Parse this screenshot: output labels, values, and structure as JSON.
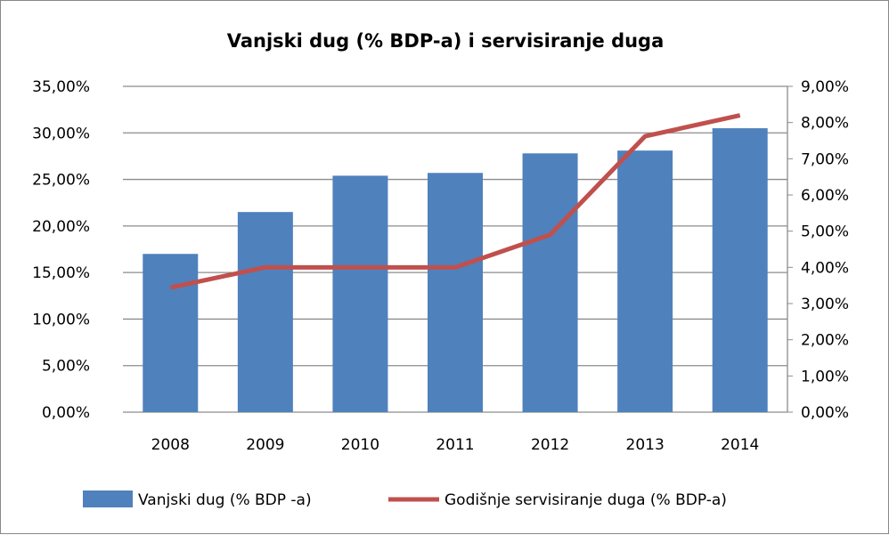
{
  "chart_data": {
    "type": "bar+line",
    "title": "Vanjski dug (% BDP-a) i servisiranje duga",
    "categories": [
      "2008",
      "2009",
      "2010",
      "2011",
      "2012",
      "2013",
      "2014"
    ],
    "series": [
      {
        "name": "Vanjski dug (% BDP -a)",
        "type": "bar",
        "axis": "left",
        "color": "#4F81BD",
        "values": [
          17.0,
          21.5,
          25.4,
          25.7,
          27.8,
          28.1,
          30.5
        ]
      },
      {
        "name": "Godišnje servisiranje duga (% BDP-a)",
        "type": "line",
        "axis": "right",
        "color": "#C0504D",
        "values": [
          3.44,
          4.0,
          4.0,
          4.0,
          4.9,
          7.62,
          8.2
        ]
      }
    ],
    "y_left": {
      "range": [
        0,
        35
      ],
      "step": 5,
      "ticks": [
        "0,00%",
        "5,00%",
        "10,00%",
        "15,00%",
        "20,00%",
        "25,00%",
        "30,00%",
        "35,00%"
      ]
    },
    "y_right": {
      "range": [
        0,
        9
      ],
      "step": 1,
      "ticks": [
        "0,00%",
        "1,00%",
        "2,00%",
        "3,00%",
        "4,00%",
        "5,00%",
        "6,00%",
        "7,00%",
        "8,00%",
        "9,00%"
      ]
    },
    "grid": true,
    "legend": "bottom"
  }
}
